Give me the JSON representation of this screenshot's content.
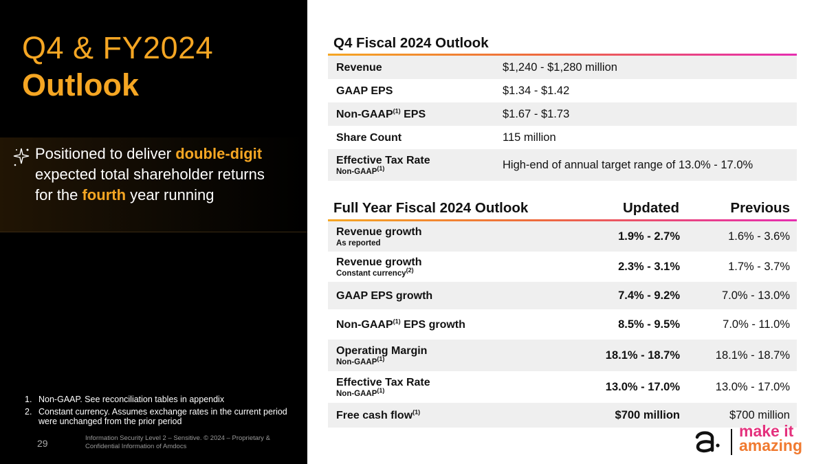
{
  "left": {
    "title_line1": "Q4 & FY2024",
    "title_line2": "Outlook",
    "claim_part1": "Positioned to deliver ",
    "claim_hl1": "double-digit",
    "claim_part2": " expected total shareholder returns for the ",
    "claim_hl2": "fourth",
    "claim_part3": " year running",
    "footnotes": [
      {
        "num": "1.",
        "text": "Non-GAAP. See reconciliation tables in appendix"
      },
      {
        "num": "2.",
        "text": "Constant currency. Assumes exchange rates in the current period were unchanged from the prior period"
      }
    ],
    "page_number": "29",
    "legal": "Information Security Level 2 – Sensitive. © 2024 – Proprietary & Confidential Information of Amdocs"
  },
  "q4": {
    "title": "Q4 Fiscal 2024 Outlook",
    "rows": [
      {
        "label": "Revenue",
        "value": "$1,240 - $1,280 million"
      },
      {
        "label": "GAAP EPS",
        "value": "$1.34 - $1.42"
      },
      {
        "label_pre": "Non-GAAP",
        "label_sup": "(1)",
        "label_post": " EPS",
        "value": "$1.67 - $1.73"
      },
      {
        "label": "Share Count",
        "value": "115 million"
      },
      {
        "label": "Effective Tax Rate",
        "sub": "Non-GAAP",
        "sub_sup": "(1)",
        "value": "High-end of annual target range of 13.0% - 17.0%"
      }
    ]
  },
  "fy": {
    "title": "Full Year Fiscal 2024 Outlook",
    "col_updated": "Updated",
    "col_previous": "Previous",
    "rows": [
      {
        "label": "Revenue growth",
        "sub": "As reported",
        "updated": "1.9% - 2.7%",
        "previous": "1.6% - 3.6%"
      },
      {
        "label": "Revenue growth",
        "sub": "Constant currency",
        "sub_sup": "(2)",
        "updated": "2.3% - 3.1%",
        "previous": "1.7% - 3.7%"
      },
      {
        "label": "GAAP EPS growth",
        "updated": "7.4% - 9.2%",
        "previous": "7.0% - 13.0%"
      },
      {
        "label_pre": "Non-GAAP",
        "label_sup": "(1)",
        "label_post": " EPS growth",
        "updated": "8.5% - 9.5%",
        "previous": "7.0% - 11.0%"
      },
      {
        "label": "Operating Margin",
        "sub": "Non-GAAP",
        "sub_sup": "(1)",
        "updated": "18.1% - 18.7%",
        "previous": "18.1% - 18.7%"
      },
      {
        "label": "Effective Tax Rate",
        "sub": "Non-GAAP",
        "sub_sup": "(1)",
        "updated": "13.0% - 17.0%",
        "previous": "13.0% - 17.0%"
      },
      {
        "label_pre": "Free cash flow",
        "label_sup": "(1)",
        "updated": "$700 million",
        "previous": "$700 million"
      }
    ]
  },
  "brand": {
    "line1": "make it",
    "line2": "amazing",
    "accent_color": "#e4317d",
    "title_color": "#f5a623"
  }
}
